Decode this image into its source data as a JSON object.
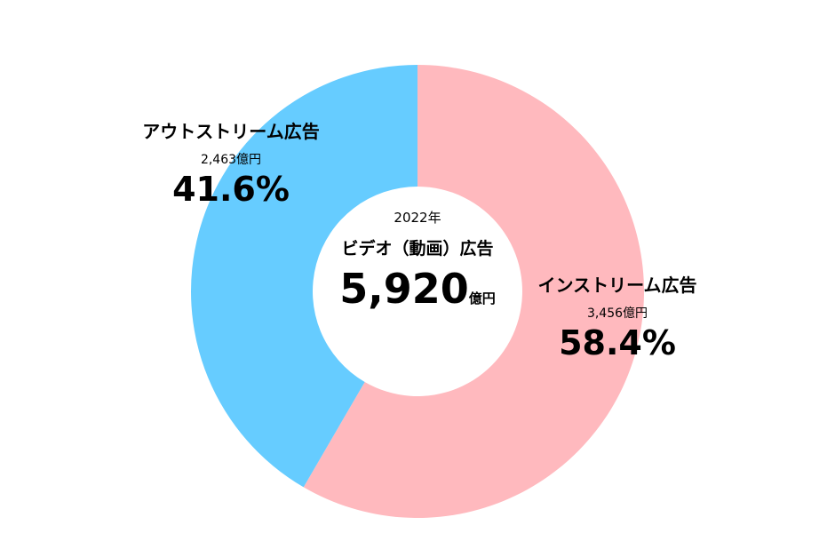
{
  "chart_data": {
    "type": "pie",
    "center": {
      "year": "2022年",
      "title": "ビデオ（動画）広告",
      "total": "5,920",
      "unit": "億円"
    },
    "slices": [
      {
        "name": "インストリーム広告",
        "amount": "3,456億円",
        "value": 3456,
        "percent": 58.4,
        "percent_label": "58.4%",
        "color": "#FFB9BE"
      },
      {
        "name": "アウトストリーム広告",
        "amount": "2,463億円",
        "value": 2463,
        "percent": 41.6,
        "percent_label": "41.6%",
        "color": "#66CCFF"
      }
    ]
  }
}
